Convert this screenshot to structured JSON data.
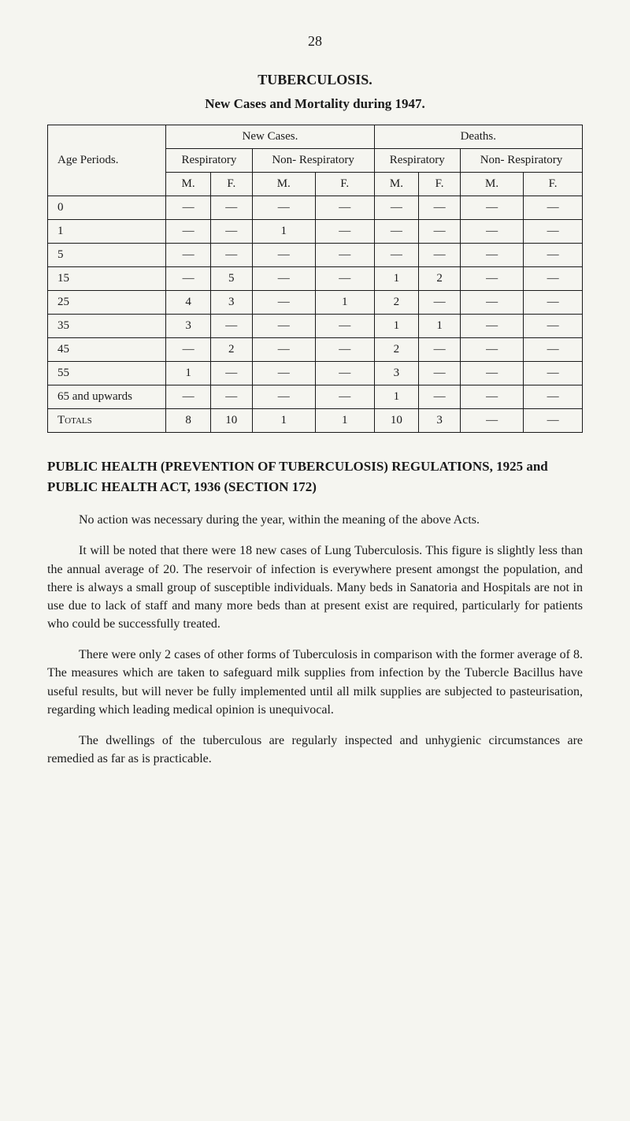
{
  "page_number": "28",
  "tb_section": {
    "title": "TUBERCULOSIS.",
    "subtitle": "New Cases and Mortality during 1947."
  },
  "table": {
    "head": {
      "age_periods": "Age Periods.",
      "new_cases": "New Cases.",
      "deaths": "Deaths.",
      "respiratory": "Respiratory",
      "non_respiratory": "Non-\nRespiratory",
      "non_respiratory2": "Non-\nRespiratory",
      "m": "M.",
      "f": "F."
    },
    "rows": [
      {
        "label": "0",
        "cells": [
          "—",
          "—",
          "—",
          "—",
          "—",
          "—",
          "—",
          "—"
        ]
      },
      {
        "label": "1",
        "cells": [
          "—",
          "—",
          "1",
          "—",
          "—",
          "—",
          "—",
          "—"
        ]
      },
      {
        "label": "5",
        "cells": [
          "—",
          "—",
          "—",
          "—",
          "—",
          "—",
          "—",
          "—"
        ]
      },
      {
        "label": "15",
        "cells": [
          "—",
          "5",
          "—",
          "—",
          "1",
          "2",
          "—",
          "—"
        ]
      },
      {
        "label": "25",
        "cells": [
          "4",
          "3",
          "—",
          "1",
          "2",
          "—",
          "—",
          "—"
        ]
      },
      {
        "label": "35",
        "cells": [
          "3",
          "—",
          "—",
          "—",
          "1",
          "1",
          "—",
          "—"
        ]
      },
      {
        "label": "45",
        "cells": [
          "—",
          "2",
          "—",
          "—",
          "2",
          "—",
          "—",
          "—"
        ]
      },
      {
        "label": "55",
        "cells": [
          "1",
          "—",
          "—",
          "—",
          "3",
          "—",
          "—",
          "—"
        ]
      },
      {
        "label": "65 and upwards",
        "cells": [
          "—",
          "—",
          "—",
          "—",
          "1",
          "—",
          "—",
          "—"
        ]
      }
    ],
    "totals": {
      "label": "Totals",
      "cells": [
        "8",
        "10",
        "1",
        "1",
        "10",
        "3",
        "—",
        "—"
      ]
    }
  },
  "regs_title": "PUBLIC HEALTH (PREVENTION OF TUBERCULOSIS) REGULATIONS, 1925 and PUBLIC HEALTH ACT, 1936 (SECTION 172)",
  "para1": "No action was necessary during the year, within the meaning of the above Acts.",
  "para2": "It will be noted that there were 18 new cases of Lung Tuberculosis. This figure is slightly less than the annual average of 20. The reservoir of infection is everywhere present amongst the population, and there is always a small group of susceptible individuals. Many beds in Sanatoria and Hospitals are not in use due to lack of staff and many more beds than at present exist are required, particularly for patients who could be successfully treated.",
  "para3": "There were only 2 cases of other forms of Tuberculosis in comparison with the former average of 8. The measures which are taken to safeguard milk supplies from infection by the Tubercle Bacillus have useful results, but will never be fully implemented until all milk supplies are subjected to pasteurisation, regarding which leading medical opinion is unequivocal.",
  "para4": "The dwellings of the tuberculous are regularly inspected and unhygienic circumstances are remedied as far as is practicable."
}
